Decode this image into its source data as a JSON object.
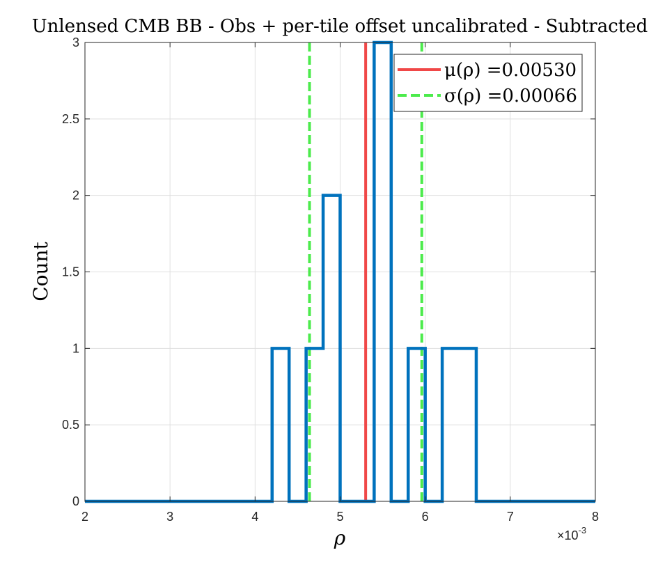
{
  "chart_data": {
    "type": "histogram",
    "title": "Unlensed CMB BB - Obs + per-tile offset uncalibrated - Subtracted",
    "xlabel": "ρ",
    "ylabel": "Count",
    "x_multiplier": "×10",
    "x_multiplier_exp": "-3",
    "xlim": [
      2,
      8
    ],
    "ylim": [
      0,
      3
    ],
    "x_ticks": [
      2,
      3,
      4,
      5,
      6,
      7,
      8
    ],
    "x_tick_labels": [
      "2",
      "3",
      "4",
      "5",
      "6",
      "7",
      "8"
    ],
    "y_ticks": [
      0,
      0.5,
      1,
      1.5,
      2,
      2.5,
      3
    ],
    "y_tick_labels": [
      "0",
      "0.5",
      "1",
      "1.5",
      "2",
      "2.5",
      "3"
    ],
    "grid": true,
    "bin_edges": [
      2.0,
      4.2,
      4.4,
      4.6,
      4.8,
      5.0,
      5.2,
      5.4,
      5.6,
      5.8,
      6.0,
      6.2,
      6.4,
      6.6,
      8.0
    ],
    "counts": [
      0,
      1,
      0,
      1,
      2,
      0,
      0,
      3,
      0,
      1,
      0,
      1,
      1,
      0
    ],
    "series_color": "#0072BD",
    "mean_line": {
      "value": 5.3,
      "color": "#F04848",
      "legend_label": "μ(ρ) =0.00530"
    },
    "sigma_lines": {
      "values": [
        4.64,
        5.96
      ],
      "color": "#4CEB4C",
      "legend_label": "σ(ρ) =0.00066"
    },
    "legend_position": "top-right"
  }
}
